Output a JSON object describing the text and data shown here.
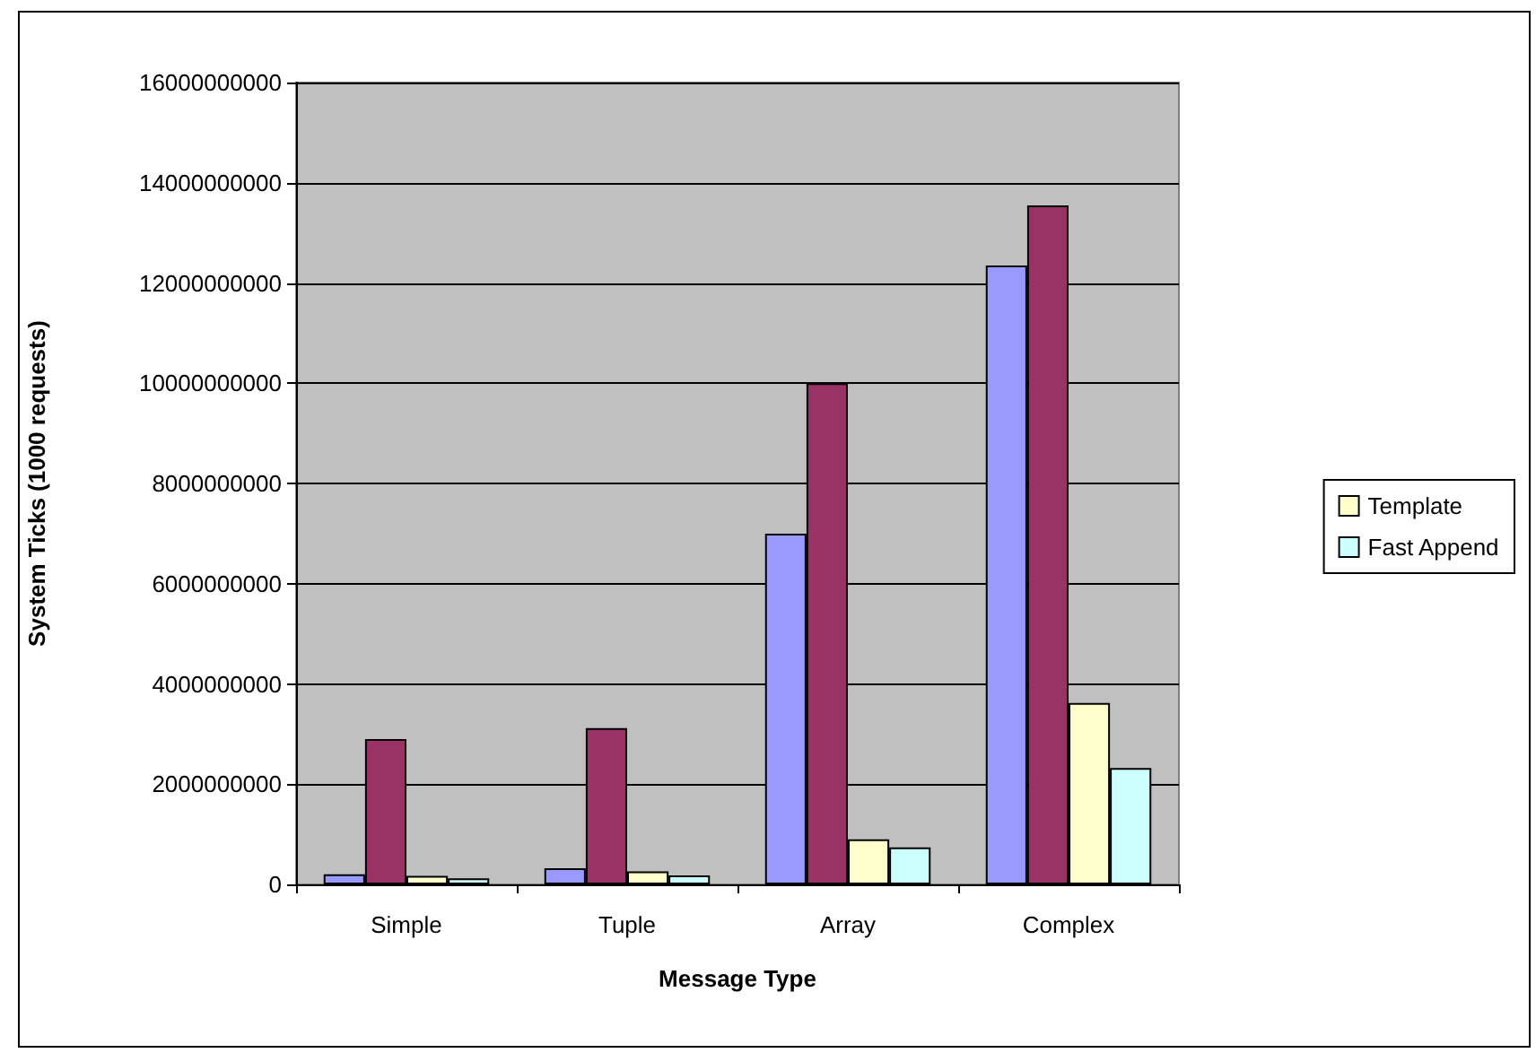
{
  "chart_data": {
    "type": "bar",
    "xlabel": "Message Type",
    "ylabel": "System Ticks (1000 requests)",
    "categories": [
      "Simple",
      "Tuple",
      "Array",
      "Complex"
    ],
    "series": [
      {
        "color": "#9999ff",
        "values": [
          200000000,
          320000000,
          7000000000,
          12350000000
        ]
      },
      {
        "color": "#993366",
        "values": [
          2900000000,
          3120000000,
          10000000000,
          13550000000
        ]
      },
      {
        "name": "Template",
        "color": "#ffffcc",
        "values": [
          170000000,
          260000000,
          900000000,
          3620000000
        ]
      },
      {
        "name": "Fast Append",
        "color": "#ccffff",
        "values": [
          120000000,
          180000000,
          740000000,
          2320000000
        ]
      }
    ],
    "ylim": [
      0,
      16000000000
    ],
    "yticks": [
      0,
      2000000000,
      4000000000,
      6000000000,
      8000000000,
      10000000000,
      12000000000,
      14000000000,
      16000000000
    ],
    "grid": "y",
    "legend": "right"
  }
}
